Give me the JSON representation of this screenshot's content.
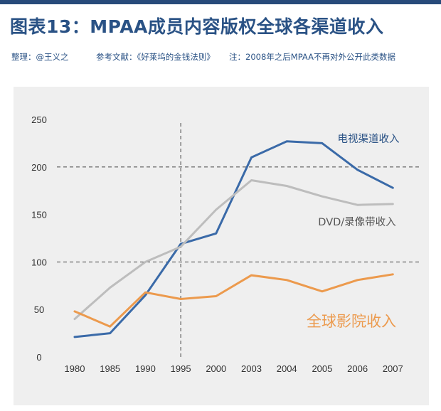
{
  "header": {
    "title": "图表13：MPAA成员内容版权全球各渠道收入",
    "compiler": "整理：@王义之",
    "reference": "参考文献：《好莱坞的金钱法则》",
    "note": "注：2008年之后MPAA不再对外公开此类数据"
  },
  "chart_data": {
    "type": "line",
    "title": "MPAA成员内容版权全球各渠道收入",
    "categories": [
      "1980",
      "1985",
      "1990",
      "1995",
      "2000",
      "2003",
      "2004",
      "2005",
      "2006",
      "2007"
    ],
    "ylim": [
      0,
      250
    ],
    "yticks": [
      "0",
      "50",
      "100",
      "150",
      "200",
      "250"
    ],
    "series": [
      {
        "name": "电视渠道收入",
        "color": "#3a6aa8",
        "values": [
          21,
          25,
          65,
          119,
          130,
          210,
          227,
          225,
          197,
          178
        ]
      },
      {
        "name": "DVD/录像带收入",
        "color": "#bdbdbd",
        "values": [
          40,
          73,
          100,
          116,
          155,
          186,
          180,
          169,
          160,
          161
        ]
      },
      {
        "name": "全球影院收入",
        "color": "#ec9a4d",
        "values": [
          48,
          32,
          68,
          61,
          64,
          86,
          81,
          69,
          81,
          87
        ]
      }
    ]
  }
}
